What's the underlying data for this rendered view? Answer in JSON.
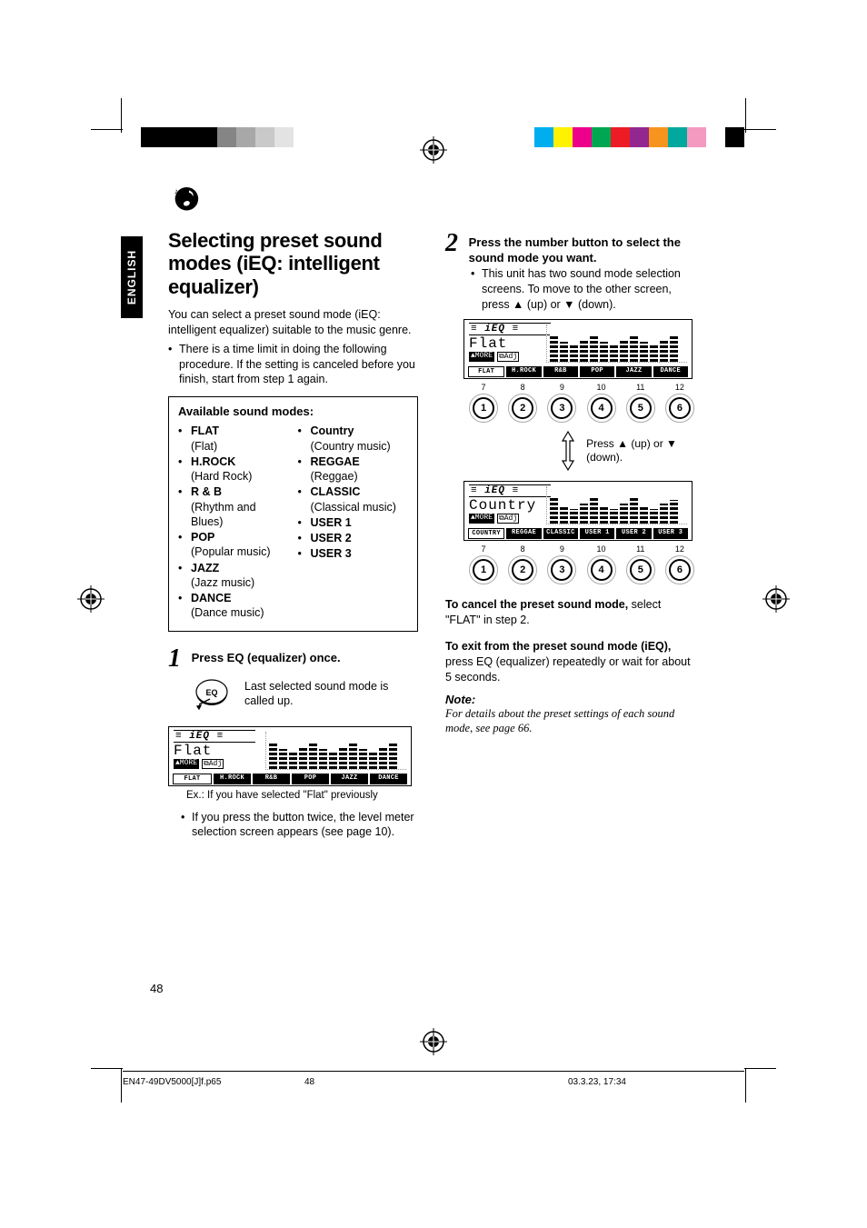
{
  "colorbars": {
    "left": [
      "#000000",
      "#000000",
      "#000000",
      "#000000",
      "#858585",
      "#a8a8a8",
      "#c9c9c9",
      "#e3e3e3",
      "#ffffff"
    ],
    "right": [
      "#00aeef",
      "#fff200",
      "#ec008c",
      "#00a651",
      "#ed1c24",
      "#92278f",
      "#f7941d",
      "#00a99d",
      "#f49ac1",
      "#ffffff",
      "#000000"
    ]
  },
  "lang": "ENGLISH",
  "title": "Selecting preset sound modes (iEQ: intelligent equalizer)",
  "intro": "You can select a preset sound mode (iEQ: intelligent equalizer) suitable to the music genre.",
  "intro_bullet": "There is a time limit in doing the following procedure. If the setting is canceled before you finish, start from step 1 again.",
  "modes_heading": "Available sound modes:",
  "modes_left": [
    {
      "name": "FLAT",
      "desc": "(Flat)"
    },
    {
      "name": "H.ROCK",
      "desc": "(Hard Rock)"
    },
    {
      "name": "R & B",
      "desc": "(Rhythm and Blues)"
    },
    {
      "name": "POP",
      "desc": "(Popular music)"
    },
    {
      "name": "JAZZ",
      "desc": "(Jazz music)"
    },
    {
      "name": "DANCE",
      "desc": "(Dance music)"
    }
  ],
  "modes_right": [
    {
      "name": "Country",
      "desc": "(Country music)"
    },
    {
      "name": "REGGAE",
      "desc": "(Reggae)"
    },
    {
      "name": "CLASSIC",
      "desc": "(Classical music)"
    },
    {
      "name": "USER 1",
      "desc": ""
    },
    {
      "name": "USER 2",
      "desc": ""
    },
    {
      "name": "USER 3",
      "desc": ""
    }
  ],
  "step1": {
    "num": "1",
    "head": "Press EQ (equalizer) once.",
    "body": "Last selected sound mode is called up.",
    "caption": "Ex.:   If you have selected \"Flat\" previously",
    "bullet": "If you press the button twice, the level meter selection screen appears (see page 10)."
  },
  "step2": {
    "num": "2",
    "head": "Press the number button to select the sound mode you want.",
    "bullet": "This unit has two sound mode selection screens. To move to the other screen, press ▲ (up) or ▼ (down).",
    "arrow_note": "Press ▲ (up) or ▼ (down)."
  },
  "lcd1": {
    "mode": "Flat",
    "tabs": [
      "FLAT",
      "H.ROCK",
      "R&B",
      "POP",
      "JAZZ",
      "DANCE"
    ],
    "sel": 0,
    "bars": [
      30,
      22,
      18,
      25,
      30,
      22,
      18,
      25,
      30,
      22,
      18,
      25,
      28
    ],
    "btn_labels": [
      "7",
      "8",
      "9",
      "10",
      "11",
      "12"
    ]
  },
  "lcd2": {
    "mode": "Country",
    "tabs": [
      "COUNTRY",
      "REGGAE",
      "CLASSIC",
      "USER 1",
      "USER 2",
      "USER 3"
    ],
    "sel": 0,
    "bars": [
      28,
      20,
      16,
      22,
      28,
      20,
      16,
      22,
      28,
      20,
      16,
      22,
      26
    ],
    "btn_labels": [
      "7",
      "8",
      "9",
      "10",
      "11",
      "12"
    ]
  },
  "cancel": {
    "bold": "To cancel the preset sound mode,",
    "rest": " select \"FLAT\" in step 2."
  },
  "exit": {
    "bold": "To exit from the preset sound mode (iEQ),",
    "rest": "press EQ (equalizer) repeatedly or wait for about 5 seconds."
  },
  "note": {
    "head": "Note:",
    "body": "For details about the preset settings of each sound mode, see page 66."
  },
  "page_num": "48",
  "footer": {
    "file": "EN47-49DV5000[J]f.p65",
    "page": "48",
    "date": "03.3.23, 17:34"
  }
}
